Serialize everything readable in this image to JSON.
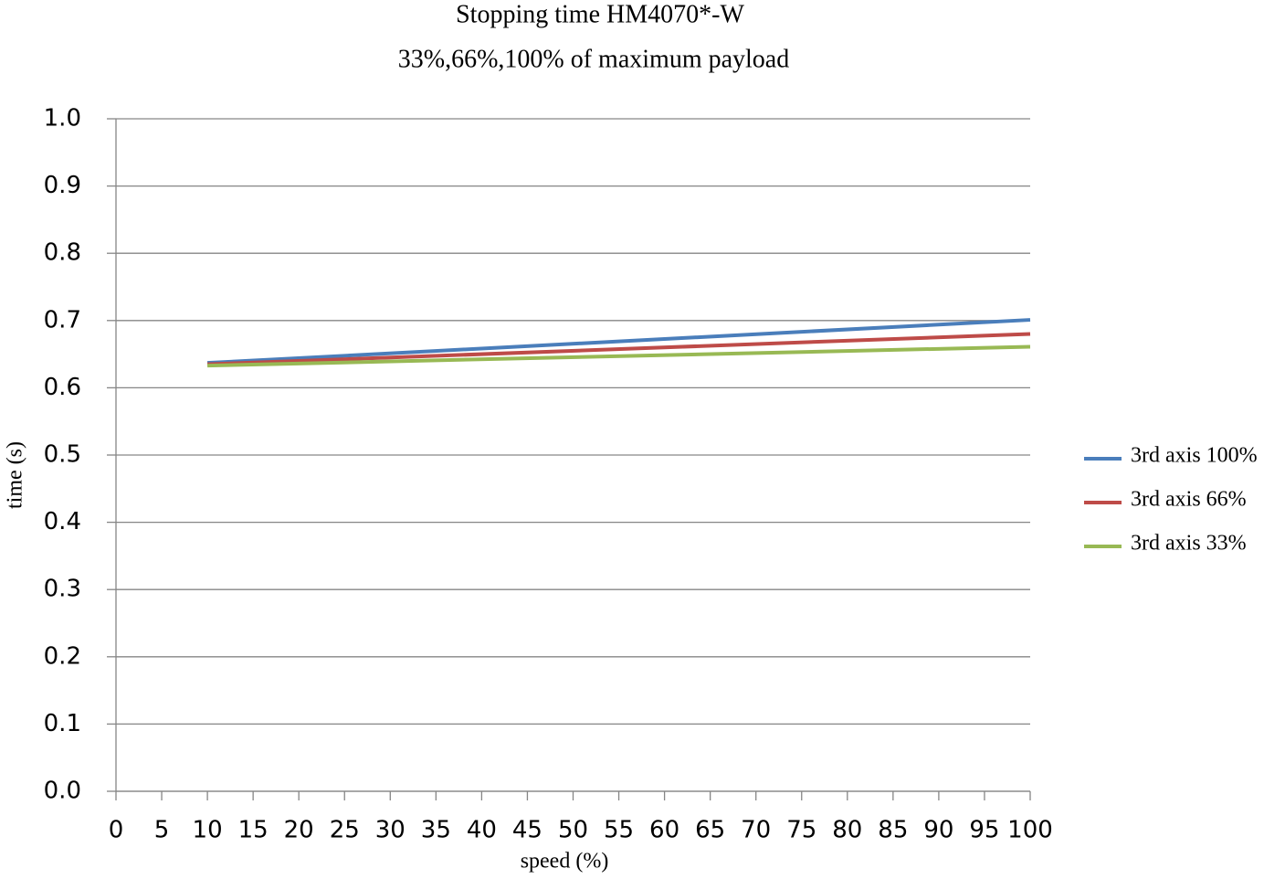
{
  "chart_data": {
    "type": "line",
    "title": "Stopping time HM4070*-W",
    "subtitle": "33%,66%,100% of maximum payload",
    "x_label": "speed (%)",
    "y_label": "time (s)",
    "x": [
      10,
      100
    ],
    "series": [
      {
        "name": "3rd axis 100%",
        "color": "#4a7ebb",
        "values": [
          0.637,
          0.701
        ]
      },
      {
        "name": "3rd axis 66%",
        "color": "#be4b48",
        "values": [
          0.635,
          0.68
        ]
      },
      {
        "name": "3rd axis 33%",
        "color": "#98b954",
        "values": [
          0.633,
          0.661
        ]
      }
    ],
    "xlim": [
      0,
      100
    ],
    "xticks": [
      0,
      5,
      10,
      15,
      20,
      25,
      30,
      35,
      40,
      45,
      50,
      55,
      60,
      65,
      70,
      75,
      80,
      85,
      90,
      95,
      100
    ],
    "ylim": [
      0,
      1
    ],
    "yticks": [
      {
        "value": 0,
        "label": "0.0"
      },
      0.1,
      0.2,
      0.3,
      0.4,
      0.5,
      0.6,
      0.7,
      0.8,
      0.9,
      {
        "value": 1,
        "label": "1.0"
      }
    ],
    "grid": true,
    "legend": "right"
  }
}
